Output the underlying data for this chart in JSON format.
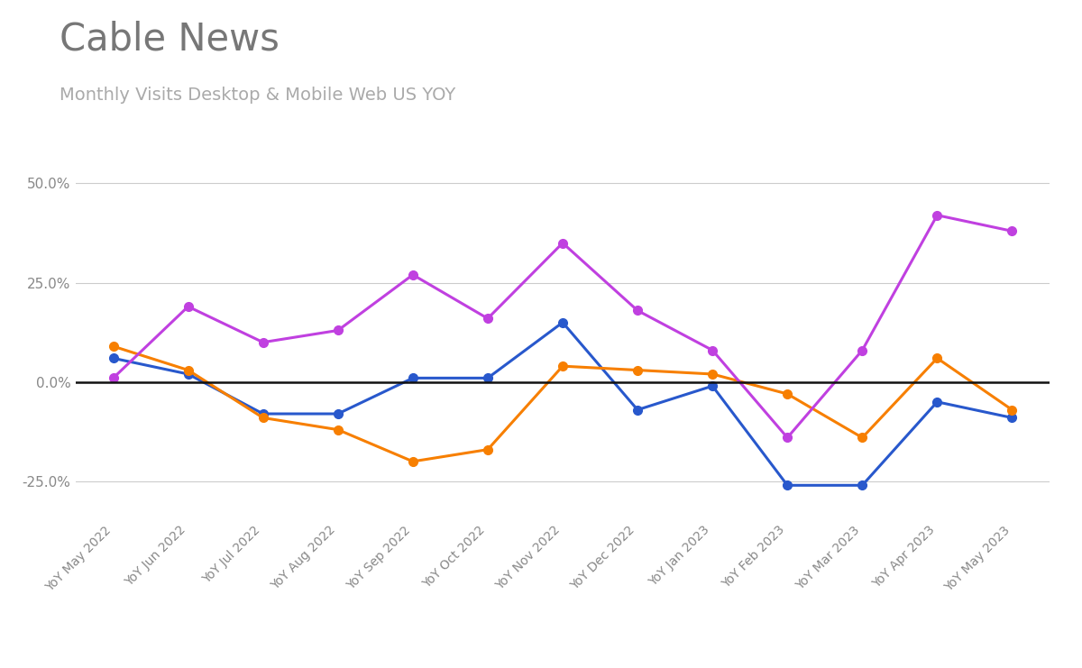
{
  "title": "Cable News",
  "subtitle": "Monthly Visits Desktop & Mobile Web US YOY",
  "categories": [
    "YoY May 2022",
    "YoY Jun 2022",
    "YoY Jul 2022",
    "YoY Aug 2022",
    "YoY Sep 2022",
    "YoY Oct 2022",
    "YoY Nov 2022",
    "YoY Dec 2022",
    "YoY Jan 2023",
    "YoY Feb 2023",
    "YoY Mar 2023",
    "YoY Apr 2023",
    "YoY May 2023"
  ],
  "cnn": [
    0.06,
    0.02,
    -0.08,
    -0.08,
    0.01,
    0.01,
    0.15,
    -0.07,
    -0.01,
    -0.26,
    -0.26,
    -0.05,
    -0.09
  ],
  "fox": [
    0.09,
    0.03,
    -0.09,
    -0.12,
    -0.2,
    -0.17,
    0.04,
    0.03,
    0.02,
    -0.03,
    -0.14,
    0.06,
    -0.07
  ],
  "msnbc": [
    0.01,
    0.19,
    0.1,
    0.13,
    0.27,
    0.16,
    0.35,
    0.18,
    0.08,
    -0.14,
    0.08,
    0.42,
    0.38
  ],
  "cnn_color": "#2858cc",
  "fox_color": "#f77f00",
  "msnbc_color": "#c040e0",
  "background_color": "#ffffff",
  "grid_color": "#cccccc",
  "zero_line_color": "#111111",
  "title_color": "#777777",
  "subtitle_color": "#aaaaaa",
  "tick_label_color": "#888888",
  "ylim": [
    -0.35,
    0.575
  ],
  "yticks": [
    -0.25,
    0.0,
    0.25,
    0.5
  ],
  "marker_size": 7,
  "line_width": 2.2,
  "title_fontsize": 30,
  "subtitle_fontsize": 14,
  "tick_fontsize": 11,
  "xtick_fontsize": 10
}
